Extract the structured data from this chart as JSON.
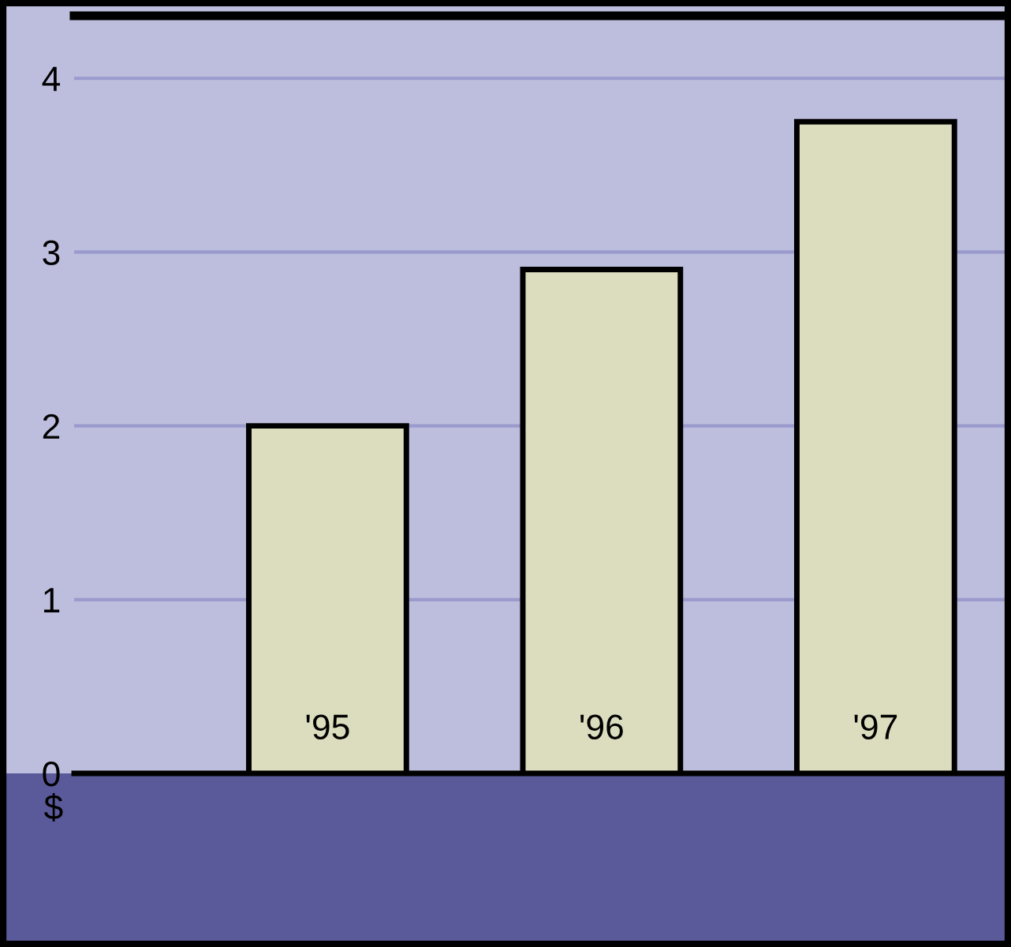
{
  "chart_data": {
    "type": "bar",
    "categories": [
      "'95",
      "'96",
      "'97"
    ],
    "values": [
      2.0,
      2.9,
      3.75
    ],
    "color": "#dcdcbe",
    "ylim": [
      0,
      4.36
    ],
    "yticks": [
      0,
      1,
      2,
      3,
      4
    ],
    "ylabel": "$",
    "grid": "y"
  }
}
